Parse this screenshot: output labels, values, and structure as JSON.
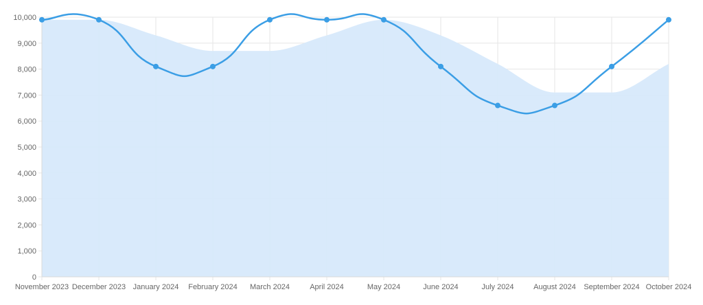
{
  "chart_data": {
    "type": "line",
    "title": "",
    "xlabel": "",
    "ylabel": "",
    "categories": [
      "November 2023",
      "December 2023",
      "January 2024",
      "February 2024",
      "March 2024",
      "April 2024",
      "May 2024",
      "June 2024",
      "July 2024",
      "August 2024",
      "September 2024",
      "October 2024"
    ],
    "ylim": [
      0,
      10000
    ],
    "y_ticks": [
      "0",
      "1,000",
      "2,000",
      "3,000",
      "4,000",
      "5,000",
      "6,000",
      "7,000",
      "8,000",
      "9,000",
      "10,000"
    ],
    "y_tick_values": [
      0,
      1000,
      2000,
      3000,
      4000,
      5000,
      6000,
      7000,
      8000,
      9000,
      10000
    ],
    "grid": true,
    "series": [
      {
        "kind": "line",
        "values": [
          9900,
          9900,
          8100,
          8100,
          9900,
          9900,
          9900,
          8100,
          6600,
          6600,
          8100,
          9900
        ],
        "color": "#3b9ee5",
        "markers": true
      },
      {
        "kind": "area",
        "values": [
          9900,
          9900,
          9300,
          8700,
          8700,
          9300,
          9900,
          9300,
          8200,
          7100,
          7100,
          8200
        ],
        "color": "#d7e9fb"
      }
    ]
  }
}
